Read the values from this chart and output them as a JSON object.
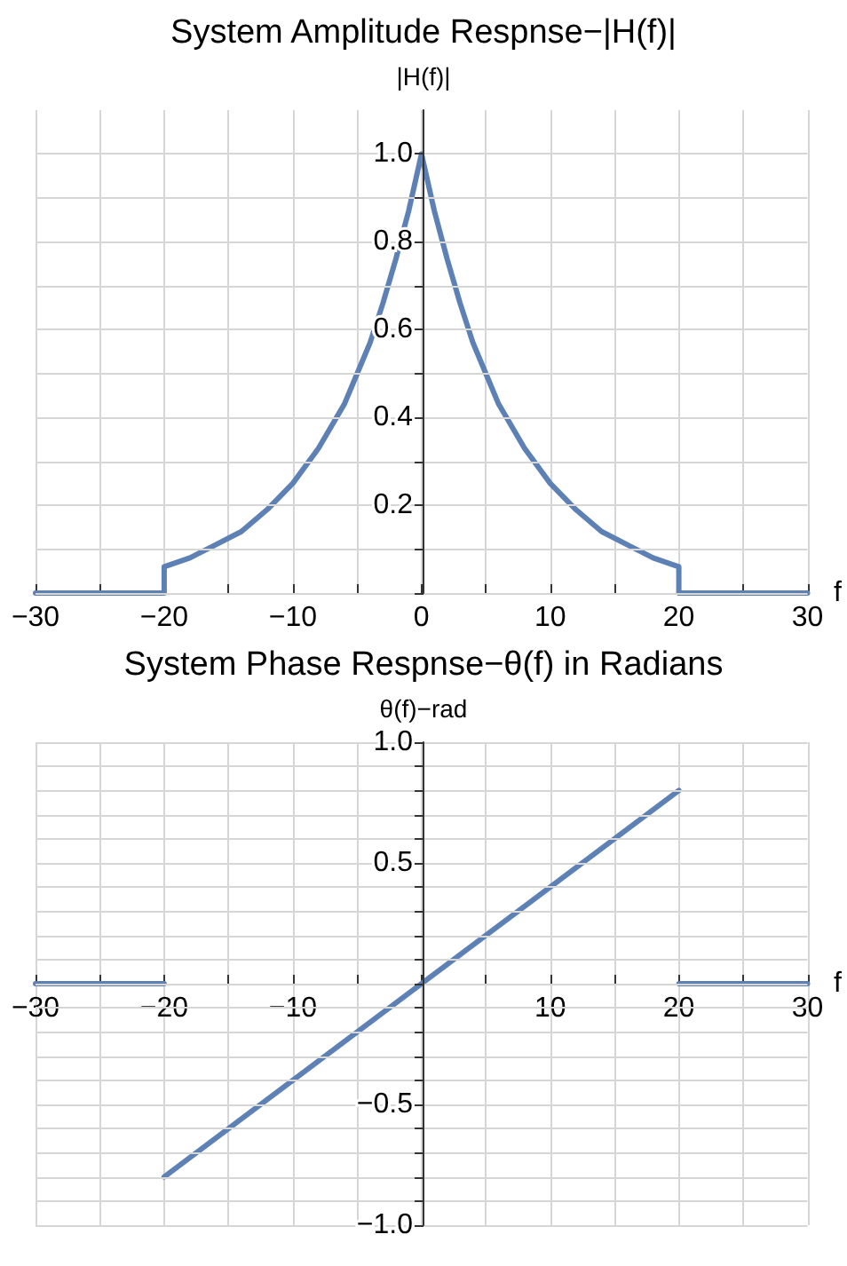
{
  "chart_data": [
    {
      "type": "line",
      "title": "System Amplitude Respnse−|H(f)|",
      "ylabel": "|H(f)|",
      "xlabel": "f",
      "color": "#5e81b5",
      "line_style": "solid",
      "marker": "none",
      "grid": true,
      "x": [
        -30,
        -20,
        -20,
        -18,
        -16,
        -14,
        -12,
        -10,
        -8,
        -6,
        -5,
        -4,
        -3,
        -2,
        -1,
        0,
        1,
        2,
        3,
        4,
        5,
        6,
        8,
        10,
        12,
        14,
        16,
        18,
        20,
        20,
        30
      ],
      "values": [
        0,
        0,
        0.06,
        0.08,
        0.11,
        0.14,
        0.19,
        0.25,
        0.33,
        0.43,
        0.5,
        0.57,
        0.66,
        0.76,
        0.87,
        1,
        0.87,
        0.76,
        0.66,
        0.57,
        0.5,
        0.43,
        0.33,
        0.25,
        0.19,
        0.14,
        0.11,
        0.08,
        0.06,
        0,
        0
      ],
      "xlim": [
        -30,
        30
      ],
      "ylim": [
        0,
        1.1
      ],
      "xticks": [
        {
          "value": -30,
          "label": "−30"
        },
        {
          "value": -25,
          "label": null
        },
        {
          "value": -20,
          "label": "−20"
        },
        {
          "value": -15,
          "label": null
        },
        {
          "value": -10,
          "label": "−10"
        },
        {
          "value": -5,
          "label": null
        },
        0,
        {
          "value": 5,
          "label": null
        },
        10,
        {
          "value": 15,
          "label": null
        },
        20,
        {
          "value": 25,
          "label": null
        },
        30
      ],
      "yticks": [
        {
          "value": 0,
          "label": null
        },
        {
          "value": 0.1,
          "label": null
        },
        0.2,
        {
          "value": 0.3,
          "label": null
        },
        0.4,
        {
          "value": 0.5,
          "label": null
        },
        0.6,
        {
          "value": 0.7,
          "label": null
        },
        0.8,
        {
          "value": 0.9,
          "label": null
        },
        {
          "value": 1,
          "label": "1.0"
        }
      ]
    },
    {
      "type": "line",
      "title": "System Phase Respnse−θ(f) in Radians",
      "ylabel": "θ(f)−rad",
      "xlabel": "f",
      "line_style": "solid",
      "marker": "none",
      "grid": true,
      "series": [
        {
          "color": "#5e81b5",
          "x": [
            -30,
            -20
          ],
          "values": [
            0,
            0
          ]
        },
        {
          "color": "#5e81b5",
          "x": [
            -20,
            20
          ],
          "values": [
            -0.8,
            0.8
          ]
        },
        {
          "color": "#5e81b5",
          "x": [
            20,
            30
          ],
          "values": [
            0,
            0
          ]
        }
      ],
      "xlim": [
        -30,
        30
      ],
      "ylim": [
        -1,
        1
      ],
      "xticks": [
        {
          "value": -30,
          "label": "−30"
        },
        {
          "value": -25,
          "label": null
        },
        {
          "value": -20,
          "label": "−20"
        },
        {
          "value": -15,
          "label": null
        },
        {
          "value": -10,
          "label": "−10"
        },
        {
          "value": -5,
          "label": null
        },
        {
          "value": 0,
          "label": null
        },
        {
          "value": 5,
          "label": null
        },
        10,
        {
          "value": 15,
          "label": null
        },
        20,
        {
          "value": 25,
          "label": null
        },
        30
      ],
      "yticks": [
        {
          "value": -1,
          "label": "−1.0"
        },
        {
          "value": -0.9,
          "label": null
        },
        {
          "value": -0.8,
          "label": null
        },
        {
          "value": -0.7,
          "label": null
        },
        {
          "value": -0.6,
          "label": null
        },
        {
          "value": -0.5,
          "label": "−0.5"
        },
        {
          "value": -0.4,
          "label": null
        },
        {
          "value": -0.3,
          "label": null
        },
        {
          "value": -0.2,
          "label": null
        },
        {
          "value": -0.1,
          "label": null
        },
        {
          "value": 0,
          "label": null
        },
        {
          "value": 0.1,
          "label": null
        },
        {
          "value": 0.2,
          "label": null
        },
        {
          "value": 0.3,
          "label": null
        },
        {
          "value": 0.4,
          "label": null
        },
        0.5,
        {
          "value": 0.6,
          "label": null
        },
        {
          "value": 0.7,
          "label": null
        },
        {
          "value": 0.8,
          "label": null
        },
        {
          "value": 0.9,
          "label": null
        },
        {
          "value": 1,
          "label": "1.0"
        }
      ]
    }
  ]
}
